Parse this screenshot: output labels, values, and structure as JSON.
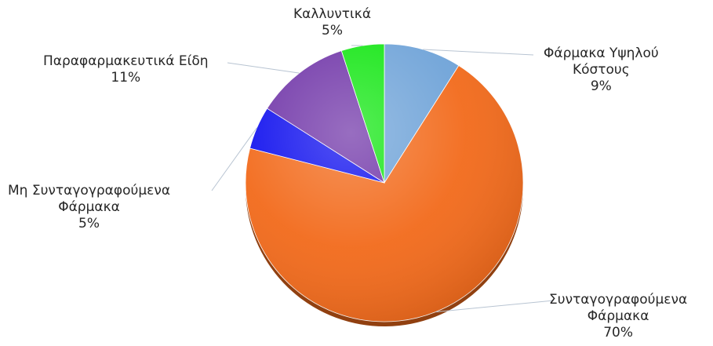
{
  "chart_data": {
    "type": "pie",
    "title": "",
    "slices": [
      {
        "label": [
          "Φάρμακα Υψηλού",
          "Κόστους"
        ],
        "percent_label": "9%",
        "value": 9,
        "color": "#6fa3d8"
      },
      {
        "label": [
          "Συνταγογραφούμενα",
          "Φάρμακα"
        ],
        "percent_label": "70%",
        "value": 70,
        "color": "#f26a1b"
      },
      {
        "label": [
          "Μη Συνταγογραφούμενα",
          "Φάρμακα"
        ],
        "percent_label": "5%",
        "value": 5,
        "color": "#1010ee"
      },
      {
        "label": [
          "Παραφαρμακευτικά Είδη"
        ],
        "percent_label": "11%",
        "value": 11,
        "color": "#7035a8"
      },
      {
        "label": [
          "Καλλυντικά"
        ],
        "percent_label": "5%",
        "value": 5,
        "color": "#14e614"
      }
    ],
    "start_angle_deg": 0,
    "direction": "clockwise",
    "data_labels": "category name and percentage, outside with leader lines"
  }
}
